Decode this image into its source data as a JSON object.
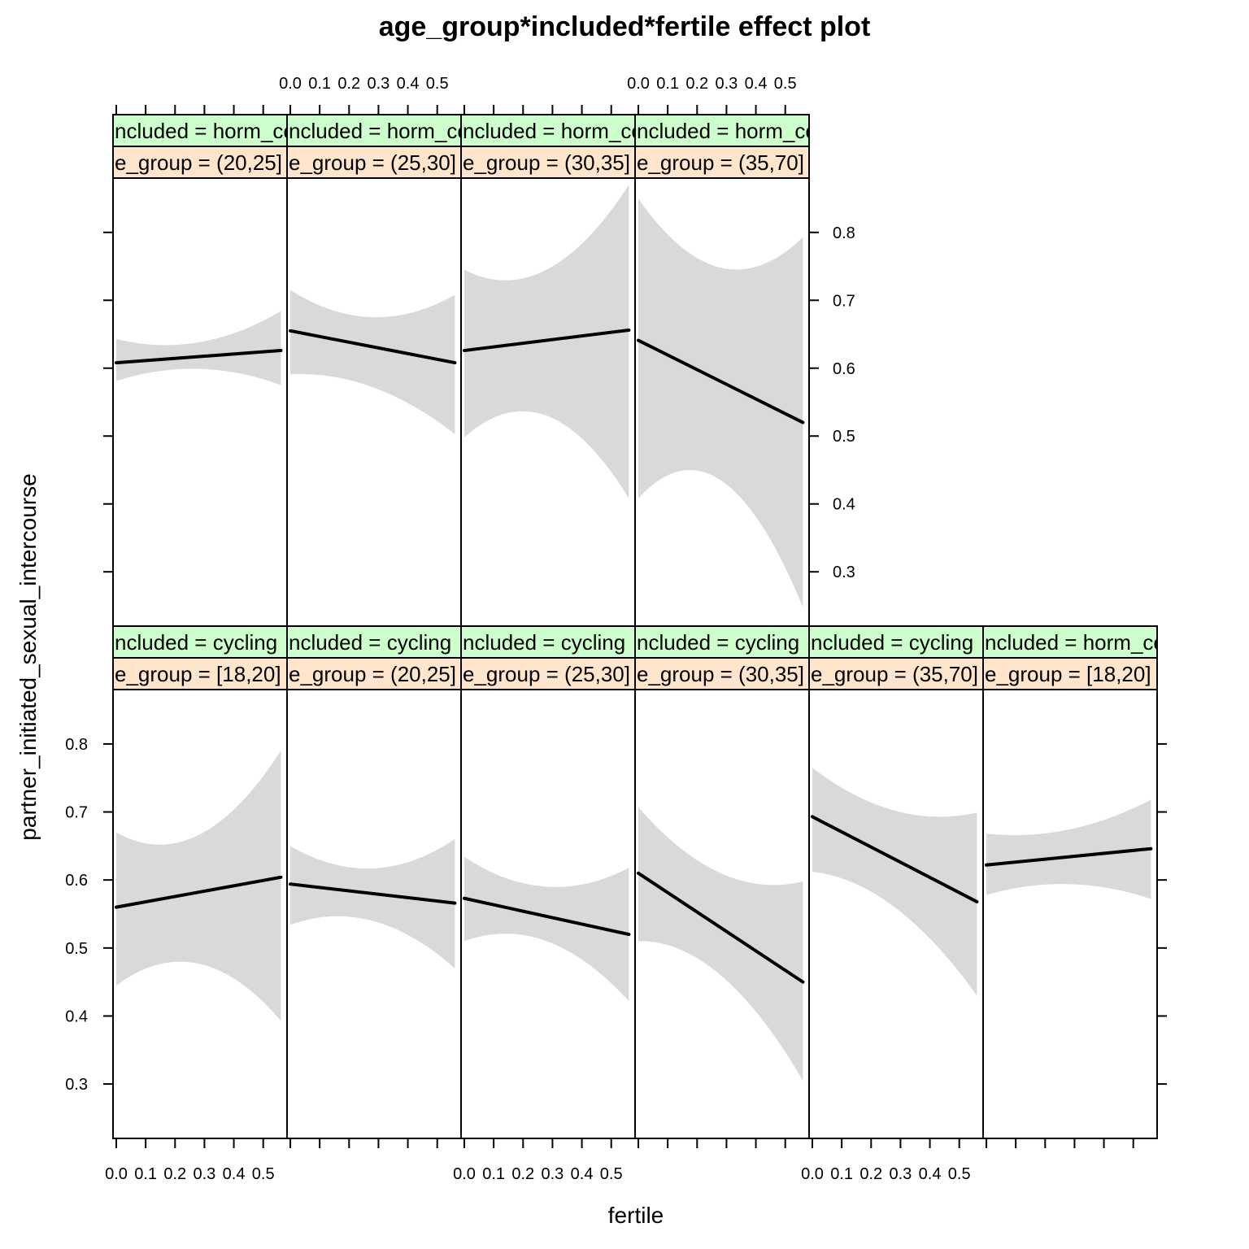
{
  "chart_data": {
    "type": "line",
    "title": "age_group*included*fertile effect plot",
    "xlabel": "fertile",
    "ylabel": "partner_initiated_sexual_intercourse",
    "x_ticks": [
      "0.0",
      "0.1",
      "0.2",
      "0.3",
      "0.4",
      "0.5"
    ],
    "y_ticks": [
      "0.3",
      "0.4",
      "0.5",
      "0.6",
      "0.7",
      "0.8"
    ],
    "x_tick_values": [
      0,
      0.1,
      0.2,
      0.3,
      0.4,
      0.5
    ],
    "y_tick_values": [
      0.3,
      0.4,
      0.5,
      0.6,
      0.7,
      0.8
    ],
    "xlim": [
      0,
      0.57
    ],
    "ylim": [
      0.22,
      0.88
    ],
    "panels": [
      {
        "included_strip": "ncluded = cycling",
        "age_strip": "e_group = [18,20]",
        "x": [
          0,
          0.28,
          0.56
        ],
        "fit": [
          0.56,
          0.582,
          0.604
        ],
        "lower": [
          0.445,
          0.477,
          0.393
        ],
        "upper": [
          0.67,
          0.666,
          0.79
        ]
      },
      {
        "included_strip": "ncluded = cycling",
        "age_strip": "e_group = (20,25]",
        "x": [
          0,
          0.28,
          0.56
        ],
        "fit": [
          0.594,
          0.58,
          0.566
        ],
        "lower": [
          0.534,
          0.54,
          0.47
        ],
        "upper": [
          0.65,
          0.617,
          0.66
        ]
      },
      {
        "included_strip": "ncluded = cycling",
        "age_strip": "e_group = (25,30]",
        "x": [
          0,
          0.28,
          0.56
        ],
        "fit": [
          0.573,
          0.546,
          0.52
        ],
        "lower": [
          0.51,
          0.51,
          0.422
        ],
        "upper": [
          0.634,
          0.59,
          0.618
        ]
      },
      {
        "included_strip": "ncluded = cycling",
        "age_strip": "e_group = (30,35]",
        "x": [
          0,
          0.28,
          0.56
        ],
        "fit": [
          0.61,
          0.53,
          0.45
        ],
        "lower": [
          0.51,
          0.46,
          0.305
        ],
        "upper": [
          0.707,
          0.61,
          0.598
        ]
      },
      {
        "included_strip": "ncluded = cycling",
        "age_strip": "e_group = (35,70]",
        "x": [
          0,
          0.28,
          0.56
        ],
        "fit": [
          0.693,
          0.631,
          0.568
        ],
        "lower": [
          0.612,
          0.56,
          0.43
        ],
        "upper": [
          0.765,
          0.702,
          0.699
        ]
      },
      {
        "included_strip": "ncluded = horm_contra",
        "age_strip": "e_group = [18,20]",
        "x": [
          0,
          0.28,
          0.56
        ],
        "fit": [
          0.622,
          0.634,
          0.646
        ],
        "lower": [
          0.578,
          0.594,
          0.572
        ],
        "upper": [
          0.668,
          0.674,
          0.718
        ]
      },
      {
        "included_strip": "ncluded = horm_contra",
        "age_strip": "e_group = (20,25]",
        "x": [
          0,
          0.28,
          0.56
        ],
        "fit": [
          0.608,
          0.617,
          0.626
        ],
        "lower": [
          0.581,
          0.599,
          0.575
        ],
        "upper": [
          0.643,
          0.638,
          0.684
        ]
      },
      {
        "included_strip": "ncluded = horm_contra",
        "age_strip": "e_group = (25,30]",
        "x": [
          0,
          0.28,
          0.56
        ],
        "fit": [
          0.655,
          0.632,
          0.608
        ],
        "lower": [
          0.591,
          0.572,
          0.503
        ],
        "upper": [
          0.715,
          0.675,
          0.708
        ]
      },
      {
        "included_strip": "ncluded = horm_contra",
        "age_strip": "e_group = (30,35]",
        "x": [
          0,
          0.28,
          0.56
        ],
        "fit": [
          0.626,
          0.641,
          0.656
        ],
        "lower": [
          0.498,
          0.53,
          0.408
        ],
        "upper": [
          0.745,
          0.745,
          0.87
        ]
      },
      {
        "included_strip": "ncluded = horm_contra",
        "age_strip": "e_group = (35,70]",
        "x": [
          0,
          0.28,
          0.56
        ],
        "fit": [
          0.641,
          0.58,
          0.52
        ],
        "lower": [
          0.408,
          0.435,
          0.248
        ],
        "upper": [
          0.85,
          0.748,
          0.793
        ]
      }
    ]
  }
}
